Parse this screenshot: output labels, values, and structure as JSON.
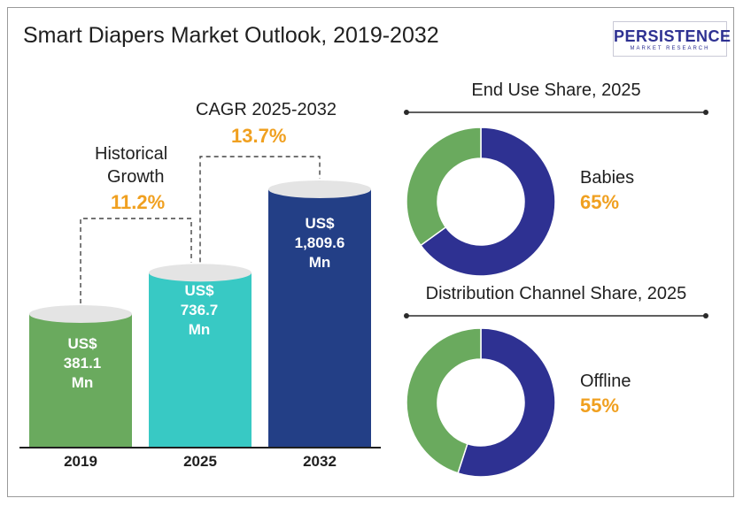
{
  "title": "Smart Diapers Market Outlook, 2019-2032",
  "logo": {
    "main": "PERSISTENCE",
    "sub": "MARKET RESEARCH"
  },
  "chart_data": [
    {
      "type": "bar",
      "categories": [
        "2019",
        "2025",
        "2032"
      ],
      "values": [
        381.1,
        736.7,
        1809.6
      ],
      "value_labels": [
        [
          "US$",
          "381.1",
          "Mn"
        ],
        [
          "US$",
          "736.7",
          "Mn"
        ],
        [
          "US$",
          "1,809.6",
          "Mn"
        ]
      ],
      "colors": [
        "#6aaa5e",
        "#38c9c4",
        "#233f86"
      ],
      "annotations": {
        "historical_label_1": "Historical",
        "historical_label_2": "Growth",
        "historical_value": "11.2%",
        "cagr_label": "CAGR 2025-2032",
        "cagr_value": "13.7%"
      }
    },
    {
      "type": "pie",
      "title": "End Use Share, 2025",
      "highlight_label": "Babies",
      "highlight_value": "65%",
      "slices": [
        {
          "label": "Babies",
          "value": 65,
          "color": "#2e3192"
        },
        {
          "label": "",
          "value": 35,
          "color": "#6aaa5e"
        }
      ]
    },
    {
      "type": "pie",
      "title": "Distribution Channel Share, 2025",
      "highlight_label": "Offline",
      "highlight_value": "55%",
      "slices": [
        {
          "label": "Offline",
          "value": 55,
          "color": "#2e3192"
        },
        {
          "label": "",
          "value": 45,
          "color": "#6aaa5e"
        }
      ]
    }
  ]
}
